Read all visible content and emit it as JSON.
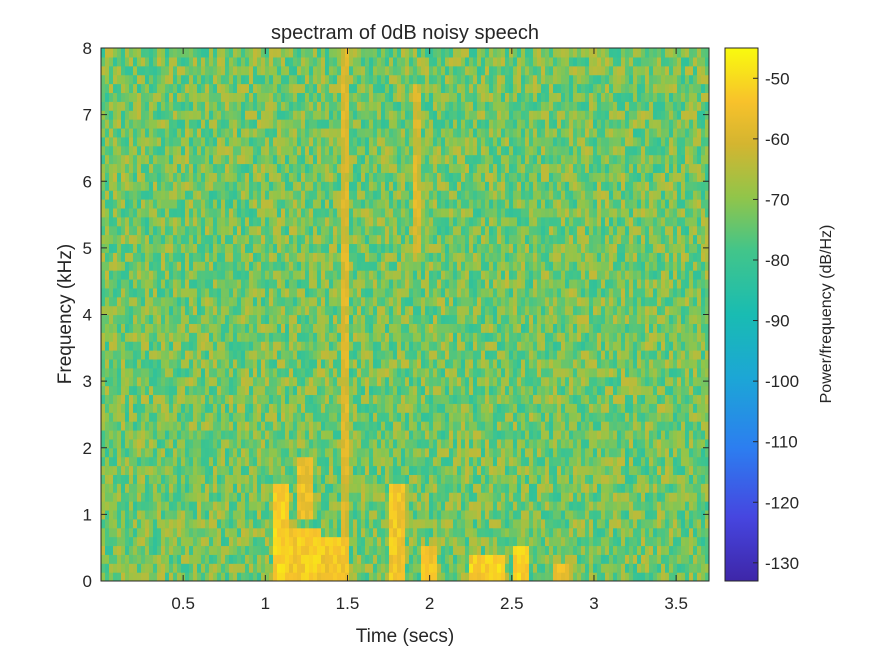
{
  "chart_data": {
    "type": "heatmap",
    "title": "spectram of 0dB noisy speech",
    "xlabel": "Time (secs)",
    "ylabel": "Frequency (kHz)",
    "colorbar_label": "Power/frequency (dB/Hz)",
    "xlim": [
      0,
      3.7
    ],
    "ylim": [
      0,
      8
    ],
    "clim": [
      -133,
      -45
    ],
    "x_ticks": [
      0.5,
      1,
      1.5,
      2,
      2.5,
      3,
      3.5
    ],
    "x_tick_labels": [
      "0.5",
      "1",
      "1.5",
      "2",
      "2.5",
      "3",
      "3.5"
    ],
    "y_ticks": [
      0,
      1,
      2,
      3,
      4,
      5,
      6,
      7,
      8
    ],
    "y_tick_labels": [
      "0",
      "1",
      "2",
      "3",
      "4",
      "5",
      "6",
      "7",
      "8"
    ],
    "colorbar_ticks": [
      -50,
      -60,
      -70,
      -80,
      -90,
      -100,
      -110,
      -120,
      -130
    ],
    "colorbar_tick_labels": [
      "-50",
      "-60",
      "-70",
      "-80",
      "-90",
      "-100",
      "-110",
      "-120",
      "-130"
    ],
    "colormap": "parula",
    "background_level_db": -72,
    "speech_regions": [
      {
        "t": [
          1.05,
          1.15
        ],
        "f": [
          0.0,
          1.5
        ],
        "db": -52
      },
      {
        "t": [
          1.15,
          1.35
        ],
        "f": [
          0.0,
          0.8
        ],
        "db": -53
      },
      {
        "t": [
          1.2,
          1.3
        ],
        "f": [
          1.0,
          1.8
        ],
        "db": -56
      },
      {
        "t": [
          1.35,
          1.5
        ],
        "f": [
          0.0,
          0.6
        ],
        "db": -54
      },
      {
        "t": [
          1.45,
          1.5
        ],
        "f": [
          0.5,
          8.0
        ],
        "db": -60
      },
      {
        "t": [
          1.75,
          1.85
        ],
        "f": [
          0.0,
          1.5
        ],
        "db": -54
      },
      {
        "t": [
          1.9,
          1.95
        ],
        "f": [
          5.0,
          7.5
        ],
        "db": -60
      },
      {
        "t": [
          1.95,
          2.05
        ],
        "f": [
          0.0,
          0.5
        ],
        "db": -55
      },
      {
        "t": [
          2.25,
          2.45
        ],
        "f": [
          0.0,
          0.4
        ],
        "db": -52
      },
      {
        "t": [
          2.5,
          2.6
        ],
        "f": [
          0.0,
          0.5
        ],
        "db": -51
      },
      {
        "t": [
          2.75,
          2.85
        ],
        "f": [
          0.0,
          0.3
        ],
        "db": -57
      }
    ]
  }
}
